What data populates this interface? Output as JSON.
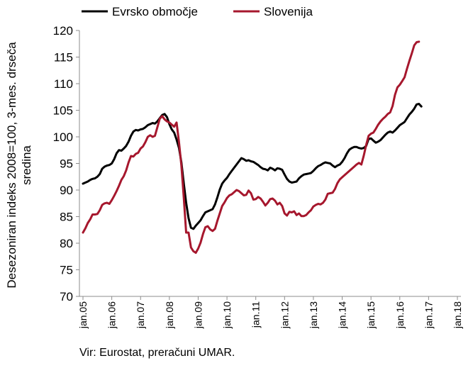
{
  "chart_data": {
    "type": "line",
    "ylabel": [
      "Desezoniran indeks 2008=100, 3-mes. drseča",
      "sredina"
    ],
    "xlabel": "",
    "ylim": [
      70,
      120
    ],
    "yticks": [
      70,
      75,
      80,
      85,
      90,
      95,
      100,
      105,
      110,
      115,
      120
    ],
    "xticks": [
      "jan.05",
      "jan.06",
      "jan.07",
      "jan.08",
      "jan.09",
      "jan.10",
      "jan.11",
      "jan.12",
      "jan.13",
      "jan.14",
      "jan.15",
      "jan.16",
      "jan.17",
      "jan.18"
    ],
    "x_start": "jan.05",
    "grid": false,
    "legend_position": "top",
    "series": [
      {
        "name": "Evrsko območje",
        "color": "#000000",
        "values": [
          91.2,
          91.4,
          91.6,
          91.9,
          92.1,
          92.2,
          92.5,
          93.0,
          94.0,
          94.4,
          94.6,
          94.7,
          95.0,
          95.8,
          96.9,
          97.5,
          97.4,
          97.8,
          98.3,
          99.1,
          100.2,
          101.0,
          101.3,
          101.2,
          101.4,
          101.5,
          101.8,
          102.2,
          102.4,
          102.6,
          102.5,
          102.9,
          103.5,
          104.1,
          104.3,
          103.7,
          102.4,
          101.4,
          100.8,
          99.5,
          97.9,
          95.2,
          91.2,
          87.6,
          84.7,
          82.9,
          82.7,
          83.3,
          83.8,
          84.3,
          85.1,
          85.8,
          86.0,
          86.2,
          86.4,
          87.3,
          88.6,
          90.1,
          91.2,
          91.8,
          92.3,
          93.0,
          93.6,
          94.2,
          94.8,
          95.4,
          96.0,
          95.8,
          95.5,
          95.6,
          95.4,
          95.3,
          95.0,
          94.7,
          94.3,
          94.0,
          93.9,
          93.7,
          94.2,
          94.0,
          93.7,
          94.1,
          94.0,
          93.8,
          92.9,
          92.1,
          91.6,
          91.4,
          91.5,
          91.6,
          92.2,
          92.6,
          92.9,
          93.0,
          93.1,
          93.2,
          93.6,
          94.1,
          94.5,
          94.7,
          95.0,
          95.2,
          95.1,
          95.0,
          94.6,
          94.3,
          94.6,
          94.8,
          95.3,
          96.0,
          96.9,
          97.6,
          97.9,
          98.1,
          98.1,
          97.9,
          97.8,
          97.9,
          98.3,
          99.6,
          99.7,
          99.3,
          98.9,
          99.1,
          99.4,
          99.9,
          100.4,
          100.8,
          101.0,
          100.8,
          101.2,
          101.7,
          102.2,
          102.5,
          102.8,
          103.5,
          104.2,
          104.7,
          105.3,
          106.1,
          106.2,
          105.7
        ]
      },
      {
        "name": "Slovenija",
        "color": "#a6172d",
        "values": [
          82.0,
          82.8,
          83.8,
          84.5,
          85.4,
          85.4,
          85.5,
          86.2,
          87.2,
          87.5,
          87.6,
          87.4,
          88.1,
          88.9,
          89.8,
          90.8,
          91.9,
          92.6,
          93.7,
          95.2,
          96.4,
          96.3,
          96.8,
          97.0,
          97.8,
          98.2,
          99.0,
          100.0,
          100.3,
          100.0,
          100.2,
          101.8,
          103.4,
          103.9,
          103.3,
          102.9,
          102.7,
          102.3,
          101.9,
          102.7,
          99.0,
          94.6,
          88.5,
          82.0,
          82.0,
          79.2,
          78.5,
          78.2,
          79.0,
          80.1,
          81.7,
          83.0,
          83.2,
          82.6,
          82.3,
          82.7,
          84.2,
          85.6,
          87.0,
          87.7,
          88.5,
          89.0,
          89.2,
          89.6,
          90.0,
          89.8,
          89.4,
          89.0,
          89.1,
          89.9,
          89.4,
          88.2,
          88.3,
          88.7,
          88.4,
          87.8,
          87.1,
          87.6,
          88.3,
          88.4,
          88.0,
          87.3,
          87.6,
          87.0,
          85.6,
          85.2,
          85.9,
          85.8,
          86.0,
          85.3,
          85.6,
          85.1,
          85.1,
          85.3,
          85.8,
          86.2,
          86.9,
          87.2,
          87.4,
          87.3,
          87.6,
          88.2,
          89.3,
          89.4,
          89.5,
          90.2,
          91.3,
          92.0,
          92.4,
          92.8,
          93.2,
          93.6,
          94.0,
          94.4,
          94.8,
          95.1,
          94.8,
          96.5,
          98.5,
          100.2,
          100.6,
          100.8,
          101.5,
          102.3,
          102.9,
          103.4,
          103.8,
          104.3,
          104.6,
          105.8,
          107.9,
          109.3,
          109.8,
          110.5,
          111.2,
          112.8,
          114.3,
          115.7,
          117.2,
          117.8,
          117.9
        ]
      }
    ]
  },
  "source": "Vir: Eurostat, preračuni UMAR."
}
